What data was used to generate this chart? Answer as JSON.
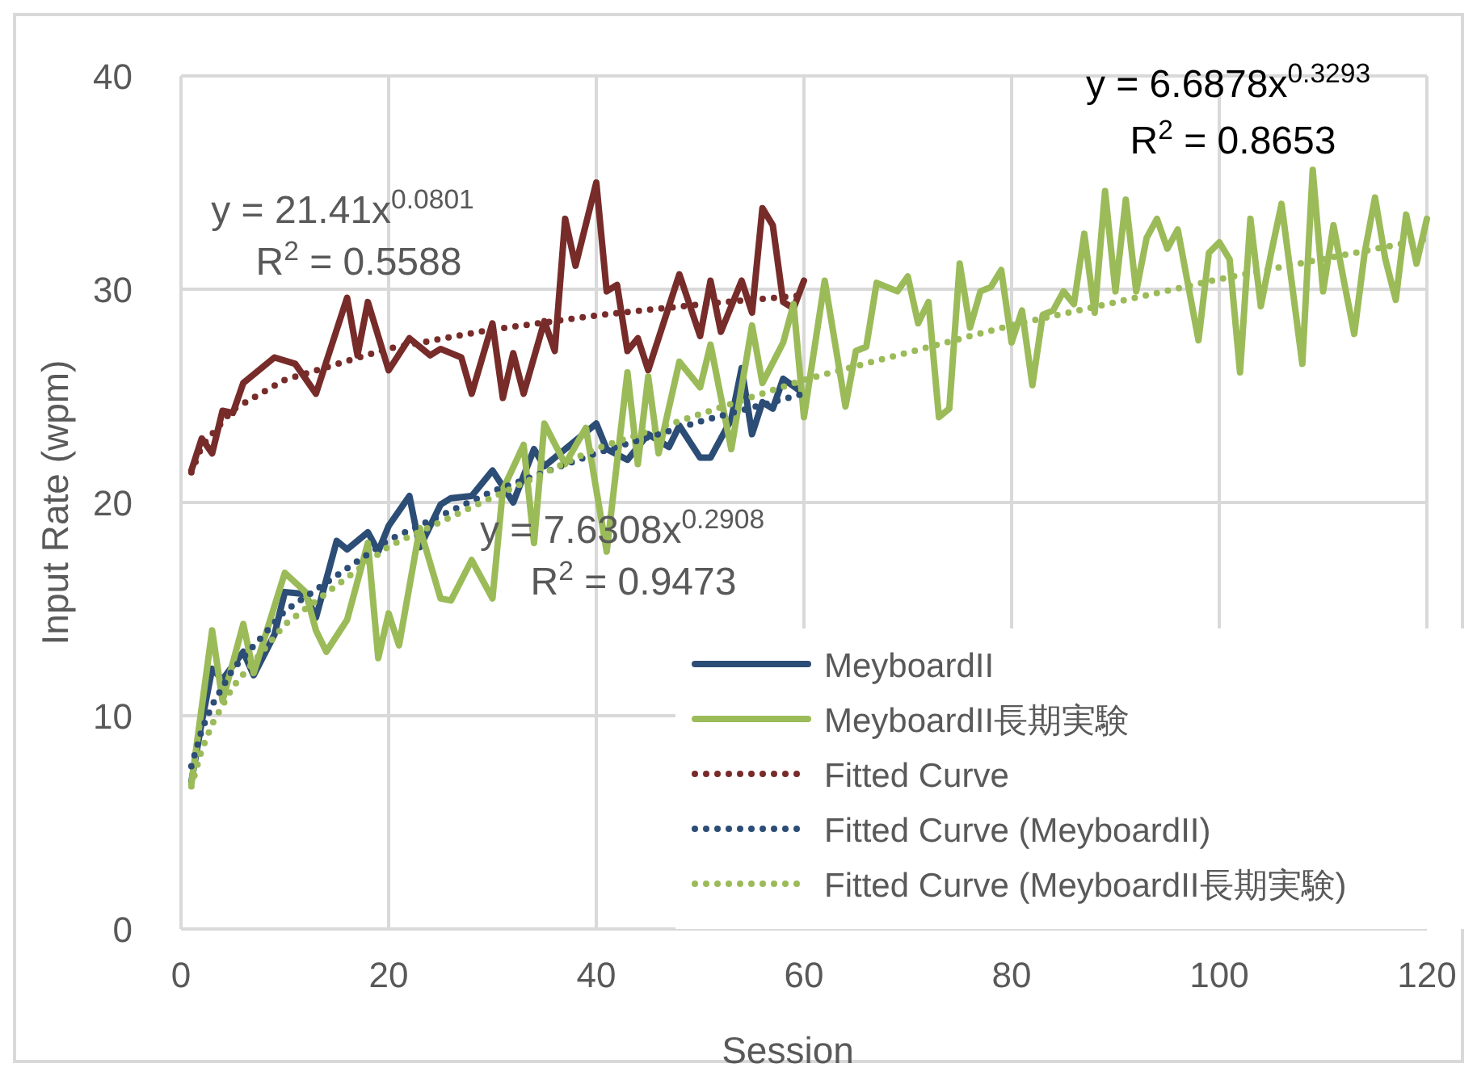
{
  "chart_data": {
    "type": "line",
    "xlabel": "Session",
    "ylabel": "Input Rate (wpm)",
    "xlim": [
      0,
      120
    ],
    "xticks": [
      0,
      20,
      40,
      60,
      80,
      100,
      120
    ],
    "ylim": [
      0,
      40
    ],
    "yticks": [
      0,
      10,
      20,
      30,
      40
    ],
    "grid": true,
    "legend": "bottom right",
    "annotations": [
      "y = 21.41x$^{0.0801}$",
      "R$^{2}$ = 0.5588",
      "y = 7.6308x$^{0.2908}$",
      "R$^{2}$ = 0.9473",
      "y = 6.6878x$^{0.3293}$",
      "R$^{2}$ = 0.8653"
    ],
    "series": [
      {
        "color": "#772c2a",
        "x": [
          1,
          2,
          3,
          4,
          5,
          6,
          9,
          11,
          13,
          16,
          17,
          18,
          20,
          22,
          24,
          25,
          27,
          28,
          30,
          31,
          32,
          33,
          35,
          36,
          37,
          38,
          40,
          41,
          42,
          43,
          44,
          45,
          48,
          50,
          51,
          52,
          54,
          55,
          56,
          57,
          58,
          59,
          60
        ],
        "values": [
          21.5,
          23.0,
          22.3,
          24.3,
          24.2,
          25.6,
          26.8,
          26.5,
          25.1,
          29.6,
          26.9,
          29.4,
          26.2,
          27.7,
          26.9,
          27.2,
          26.8,
          25.1,
          28.4,
          24.9,
          27.0,
          25.1,
          28.5,
          27.1,
          33.3,
          31.1,
          35.0,
          29.9,
          30.2,
          27.1,
          27.7,
          26.2,
          30.7,
          27.8,
          30.4,
          28.0,
          30.4,
          28.9,
          33.8,
          33.0,
          29.4,
          29.1,
          30.4
        ]
      },
      {
        "name": "MeyboardII",
        "color": "#2c4d75",
        "x": [
          1,
          2,
          3,
          4,
          6,
          7,
          9,
          10,
          12,
          13,
          15,
          16,
          18,
          19,
          20,
          22,
          23,
          25,
          26,
          28,
          30,
          32,
          34,
          35,
          40,
          41,
          43,
          45,
          47,
          48,
          50,
          51,
          53,
          54,
          55,
          56,
          57,
          58,
          60
        ],
        "values": [
          6.9,
          9.7,
          12.2,
          11.7,
          13.0,
          11.9,
          13.8,
          15.8,
          15.7,
          14.6,
          18.2,
          17.8,
          18.6,
          17.7,
          18.9,
          20.3,
          17.9,
          19.9,
          20.2,
          20.3,
          21.5,
          20.0,
          22.5,
          21.7,
          23.7,
          22.5,
          22.0,
          23.2,
          22.6,
          23.6,
          22.1,
          22.1,
          23.9,
          26.3,
          23.2,
          24.7,
          24.4,
          25.8,
          25.1
        ]
      },
      {
        "name": "MeyboardII長期実験",
        "color": "#9bbb59",
        "x": [
          1,
          3,
          4,
          6,
          7,
          10,
          12,
          13,
          14,
          16,
          18,
          19,
          20,
          21,
          23,
          25,
          26,
          28,
          30,
          31,
          33,
          34,
          35,
          37,
          39,
          41,
          43,
          44,
          45,
          46,
          48,
          50,
          51,
          53,
          55,
          56,
          58,
          59,
          60,
          62,
          64,
          65,
          66,
          67,
          69,
          70,
          71,
          72,
          73,
          74,
          75,
          76,
          77,
          78,
          79,
          80,
          81,
          82,
          83,
          84,
          85,
          86,
          87,
          88,
          89,
          90,
          91,
          92,
          93,
          94,
          95,
          96,
          98,
          99,
          100,
          101,
          102,
          103,
          104,
          105,
          106,
          108,
          109,
          110,
          111,
          112,
          113,
          114,
          115,
          116,
          117,
          118,
          119,
          120
        ],
        "values": [
          6.8,
          14.0,
          10.7,
          14.3,
          12.0,
          16.7,
          15.8,
          14.0,
          13.0,
          14.5,
          18.1,
          12.7,
          14.8,
          13.3,
          18.8,
          15.5,
          15.4,
          17.3,
          15.5,
          20.6,
          22.7,
          18.1,
          23.7,
          21.8,
          23.5,
          17.7,
          26.1,
          21.8,
          25.9,
          22.3,
          26.6,
          25.4,
          27.4,
          22.5,
          28.3,
          25.6,
          27.5,
          29.3,
          24.0,
          30.4,
          24.5,
          27.1,
          27.3,
          30.3,
          29.9,
          30.6,
          28.4,
          29.4,
          24.0,
          24.4,
          31.2,
          28.2,
          29.9,
          30.1,
          30.9,
          27.5,
          29.0,
          25.5,
          28.8,
          29.0,
          29.9,
          29.3,
          32.6,
          28.9,
          34.6,
          29.9,
          34.2,
          29.9,
          32.4,
          33.3,
          31.9,
          32.8,
          27.6,
          31.7,
          32.2,
          31.4,
          26.1,
          33.3,
          29.2,
          31.7,
          34.0,
          26.5,
          35.6,
          29.9,
          33.0,
          30.4,
          27.9,
          31.7,
          34.3,
          31.4,
          29.5,
          33.5,
          31.2,
          33.3
        ]
      },
      {
        "name": "Fitted Curve",
        "color": "#772c2a",
        "line_style": "dotted",
        "x": [
          1,
          2,
          5,
          10,
          20,
          30,
          40,
          50,
          60
        ],
        "values": [
          21.41,
          22.63,
          24.36,
          25.75,
          27.22,
          28.11,
          28.77,
          29.29,
          29.72
        ]
      },
      {
        "name": "Fitted Curve (MeyboardII)",
        "color": "#2c4d75",
        "line_style": "dotted",
        "x": [
          1,
          2,
          3,
          5,
          10,
          20,
          30,
          40,
          50,
          60
        ],
        "values": [
          7.63,
          9.33,
          10.5,
          12.18,
          14.91,
          18.24,
          20.52,
          22.31,
          23.8,
          25.1
        ]
      },
      {
        "name": "Fitted Curve (MeyboardII長期実験)",
        "color": "#9bbb59",
        "line_style": "dotted",
        "x": [
          1,
          2,
          3,
          5,
          10,
          20,
          40,
          60,
          80,
          100,
          120
        ],
        "values": [
          6.69,
          8.4,
          9.6,
          11.36,
          14.28,
          17.94,
          22.53,
          25.75,
          28.31,
          30.47,
          32.36
        ]
      }
    ]
  }
}
